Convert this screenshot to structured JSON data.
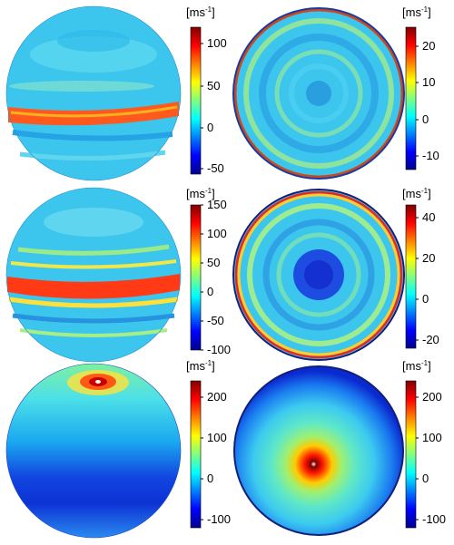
{
  "unit": {
    "base": "[ms",
    "exp": "-1",
    "close": "]"
  },
  "panels": [
    {
      "name": "row1-left",
      "view": "side",
      "ticks": [
        "100",
        "50",
        "0",
        "-50"
      ],
      "range": [
        -60,
        120
      ]
    },
    {
      "name": "row1-right",
      "view": "pole",
      "ticks": [
        "20",
        "10",
        "0",
        "-10"
      ],
      "range": [
        -15,
        25
      ]
    },
    {
      "name": "row2-left",
      "view": "side",
      "ticks": [
        "150",
        "100",
        "50",
        "0",
        "-50",
        "-100"
      ],
      "range": [
        -100,
        150
      ]
    },
    {
      "name": "row2-right",
      "view": "pole",
      "ticks": [
        "40",
        "20",
        "0",
        "-20"
      ],
      "range": [
        -25,
        45
      ]
    },
    {
      "name": "row3-left",
      "view": "side",
      "ticks": [
        "200",
        "100",
        "0",
        "-100"
      ],
      "range": [
        -120,
        240
      ]
    },
    {
      "name": "row3-right",
      "view": "pole",
      "ticks": [
        "200",
        "100",
        "0",
        "-100"
      ],
      "range": [
        -120,
        240
      ]
    }
  ],
  "colormap": [
    "#00008f",
    "#0000ff",
    "#0080ff",
    "#00ffff",
    "#80ff80",
    "#ffff00",
    "#ff8000",
    "#ff0000",
    "#800000"
  ]
}
